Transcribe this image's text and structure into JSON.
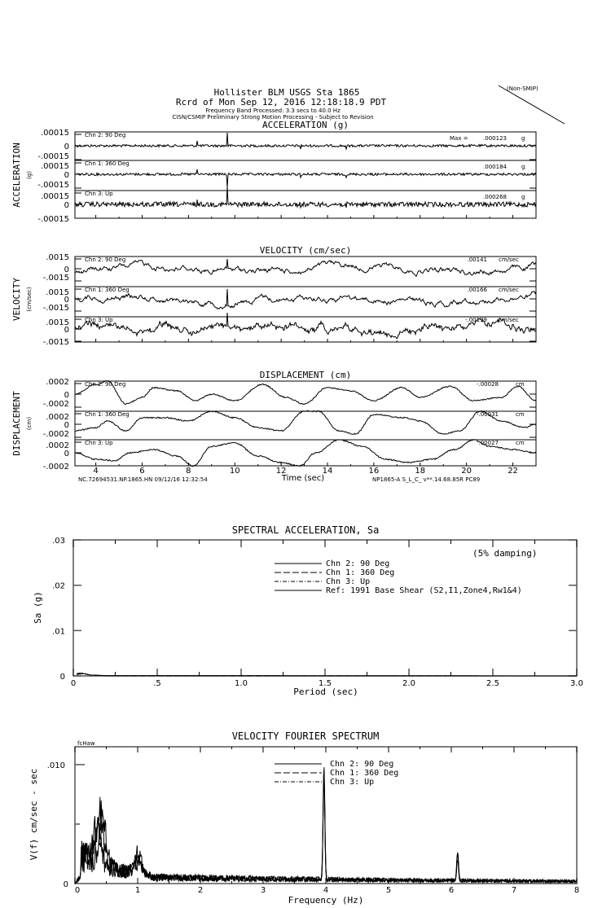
{
  "header": {
    "line1": "Hollister BLM    USGS Sta 1865",
    "line2": "Rcrd of Mon Sep 12, 2016 12:18:18.9 PDT",
    "line3": "Frequency Band Processed: 3.3 secs to 40.0 Hz",
    "line4": "CISN/CSMIP Preliminary Strong Motion Processing - Subject to Revision",
    "stamp": "(Non-SMIP)"
  },
  "footer": {
    "left": "NC.72694531.NP.1865.HN 09/12/16 12:32:54",
    "right": "NP1865-A  S_L_C_  v**.14.68.85R PC89"
  },
  "chart_data": [
    {
      "type": "line",
      "title": "ACCELERATION (g)",
      "ylabel": "ACCELERATION",
      "yunit": "(g)",
      "xlabel": "Time (sec)",
      "xlim": [
        3.1,
        23.0
      ],
      "xticks": [
        "4",
        "6",
        "8",
        "10",
        "12",
        "14",
        "16",
        "18",
        "20",
        "22"
      ],
      "yticks": [
        ".00015",
        "0",
        "-.00015"
      ],
      "ylim": [
        -0.00015,
        0.00015
      ],
      "max_prefix": "Max =",
      "channels": [
        {
          "name": "Chn 2: 90 Deg",
          "max": ".000123",
          "unit": "g"
        },
        {
          "name": "Chn 1: 360 Deg",
          "max": ".000184",
          "unit": "g"
        },
        {
          "name": "Chn 3: Up",
          "max": ".000268",
          "unit": "g"
        }
      ]
    },
    {
      "type": "line",
      "title": "VELOCITY (cm/sec)",
      "ylabel": "VELOCITY",
      "yunit": "(cm/sec)",
      "xlim": [
        3.1,
        23.0
      ],
      "yticks": [
        ".0015",
        "0",
        "-.0015"
      ],
      "ylim": [
        -0.0015,
        0.0015
      ],
      "channels": [
        {
          "name": "Chn 2: 90 Deg",
          "max": ".00141",
          "unit": "cm/sec"
        },
        {
          "name": "Chn 1: 360 Deg",
          "max": ".00166",
          "unit": "cm/sec"
        },
        {
          "name": "Chn 3: Up",
          "max": "-.00199",
          "unit": "cm/sec"
        }
      ]
    },
    {
      "type": "line",
      "title": "DISPLACEMENT (cm)",
      "ylabel": "DISPLACEMENT",
      "yunit": "(cm)",
      "xlim": [
        3.1,
        23.0
      ],
      "yticks": [
        ".0002",
        "0",
        "-.0002"
      ],
      "ylim": [
        -0.0002,
        0.0002
      ],
      "channels": [
        {
          "name": "Chn 2: 90 Deg",
          "max": "-.00028",
          "unit": "cm",
          "points": [
            [
              3.1,
              0
            ],
            [
              4,
              0.00015
            ],
            [
              4.5,
              0.0002
            ],
            [
              5.3,
              -0.00015
            ],
            [
              6,
              -5e-05
            ],
            [
              6.5,
              0.0001
            ],
            [
              7.5,
              5e-05
            ],
            [
              8.3,
              -0.0001
            ],
            [
              9,
              0
            ],
            [
              10,
              -0.0001
            ],
            [
              11.2,
              0.00015
            ],
            [
              12.2,
              -5e-05
            ],
            [
              13,
              -0.00015
            ],
            [
              14,
              0.0001
            ],
            [
              15,
              5e-05
            ],
            [
              16,
              -0.0001
            ],
            [
              17.2,
              0.0001
            ],
            [
              18,
              -5e-05
            ],
            [
              19.3,
              0.00012
            ],
            [
              20.3,
              -0.0001
            ],
            [
              21.5,
              -5e-05
            ],
            [
              22.2,
              0.00012
            ],
            [
              23,
              -0.0001
            ]
          ]
        },
        {
          "name": "Chn 1: 360 Deg",
          "max": "-.00031",
          "unit": "cm",
          "points": [
            [
              3.1,
              -0.0001
            ],
            [
              4,
              -5e-05
            ],
            [
              4.5,
              5e-05
            ],
            [
              5.3,
              -0.0001
            ],
            [
              6,
              0.0001
            ],
            [
              7,
              0.0001
            ],
            [
              8,
              5e-05
            ],
            [
              9,
              0.0002
            ],
            [
              10,
              0.0001
            ],
            [
              11,
              -5e-05
            ],
            [
              12,
              -0.0001
            ],
            [
              13,
              0.0002
            ],
            [
              13.6,
              0.0002
            ],
            [
              14.5,
              -0.0001
            ],
            [
              15.2,
              -0.00015
            ],
            [
              16,
              0.00015
            ],
            [
              17.3,
              0.0001
            ],
            [
              18,
              5e-05
            ],
            [
              19,
              -0.00015
            ],
            [
              19.7,
              -0.0001
            ],
            [
              20.6,
              0.0002
            ],
            [
              21.5,
              5e-05
            ],
            [
              22.5,
              -5e-05
            ],
            [
              23,
              0
            ]
          ]
        },
        {
          "name": "Chn 3: Up",
          "max": ".00027",
          "unit": "cm",
          "points": [
            [
              3.1,
              0
            ],
            [
              4,
              -0.0001
            ],
            [
              4.8,
              -0.00012
            ],
            [
              5.5,
              0
            ],
            [
              6.5,
              5e-05
            ],
            [
              7.5,
              -5e-05
            ],
            [
              8.2,
              -0.0002
            ],
            [
              9,
              0.0001
            ],
            [
              10,
              0.00015
            ],
            [
              11,
              -5e-05
            ],
            [
              12,
              -0.00015
            ],
            [
              12.8,
              -0.0002
            ],
            [
              13.5,
              0
            ],
            [
              14.5,
              0.0002
            ],
            [
              15.5,
              0.0001
            ],
            [
              16.5,
              -0.0001
            ],
            [
              17.5,
              -0.00015
            ],
            [
              18.5,
              -0.0001
            ],
            [
              19.5,
              5e-05
            ],
            [
              20.3,
              0.0002
            ],
            [
              21,
              0.0001
            ],
            [
              22,
              5e-05
            ],
            [
              23,
              0
            ]
          ]
        }
      ]
    },
    {
      "type": "line",
      "title": "SPECTRAL ACCELERATION, Sa",
      "xlabel": "Period (sec)",
      "ylabel": "Sa (g)",
      "xlim": [
        0,
        3.0
      ],
      "ylim": [
        0,
        0.03
      ],
      "xticks": [
        "0",
        ".5",
        "1.0",
        "1.5",
        "2.0",
        "2.5",
        "3.0"
      ],
      "yticks": [
        ".03",
        ".02",
        ".01",
        "0"
      ],
      "annotation": "(5% damping)",
      "legend_position": "top-center",
      "series": [
        {
          "name": "Chn 2: 90 Deg",
          "style": "solid",
          "points": [
            [
              0.02,
              0.0004
            ],
            [
              0.05,
              0.0006
            ],
            [
              0.1,
              0.0002
            ],
            [
              0.2,
              5e-05
            ],
            [
              3.0,
              0
            ]
          ]
        },
        {
          "name": "Chn 1: 360 Deg",
          "style": "dashed",
          "points": [
            [
              0.02,
              0.0003
            ],
            [
              0.06,
              0.0005
            ],
            [
              0.1,
              0.0002
            ],
            [
              0.2,
              5e-05
            ],
            [
              3.0,
              0
            ]
          ]
        },
        {
          "name": "Chn 3: Up",
          "style": "dashdot",
          "points": [
            [
              0.02,
              0.0005
            ],
            [
              0.05,
              0.0007
            ],
            [
              0.1,
              0.0002
            ],
            [
              0.2,
              5e-05
            ],
            [
              3.0,
              0
            ]
          ]
        },
        {
          "name": "Ref: 1991 Base Shear (S2,I1,Zone4,Rw1&4)",
          "style": "solid",
          "points": []
        }
      ]
    },
    {
      "type": "line",
      "title": "VELOCITY FOURIER SPECTRUM",
      "xlabel": "Frequency (Hz)",
      "ylabel": "V(f)   cm/sec - sec",
      "corner_label": "fcHaw",
      "xlim": [
        0,
        8
      ],
      "ylim": [
        0,
        0.0115
      ],
      "xticks": [
        "0",
        "1",
        "2",
        "3",
        "4",
        "5",
        "6",
        "7",
        "8"
      ],
      "yticks": [
        ".010",
        "0"
      ],
      "legend_position": "top-center",
      "series": [
        {
          "name": "Chn 2: 90 Deg",
          "style": "solid",
          "peaks": [
            [
              0.4,
              0.0055
            ],
            [
              1.0,
              0.0022
            ],
            [
              3.97,
              0.009
            ],
            [
              6.1,
              0.0022
            ]
          ]
        },
        {
          "name": "Chn 1: 360 Deg",
          "style": "dashed",
          "peaks": [
            [
              0.35,
              0.0045
            ],
            [
              1.0,
              0.0018
            ],
            [
              3.97,
              0.0095
            ],
            [
              6.1,
              0.0025
            ]
          ]
        },
        {
          "name": "Chn 3: Up",
          "style": "dashdot",
          "peaks": [
            [
              0.45,
              0.005
            ],
            [
              1.0,
              0.0015
            ],
            [
              3.97,
              0.0085
            ],
            [
              6.1,
              0.0018
            ]
          ]
        }
      ]
    }
  ]
}
